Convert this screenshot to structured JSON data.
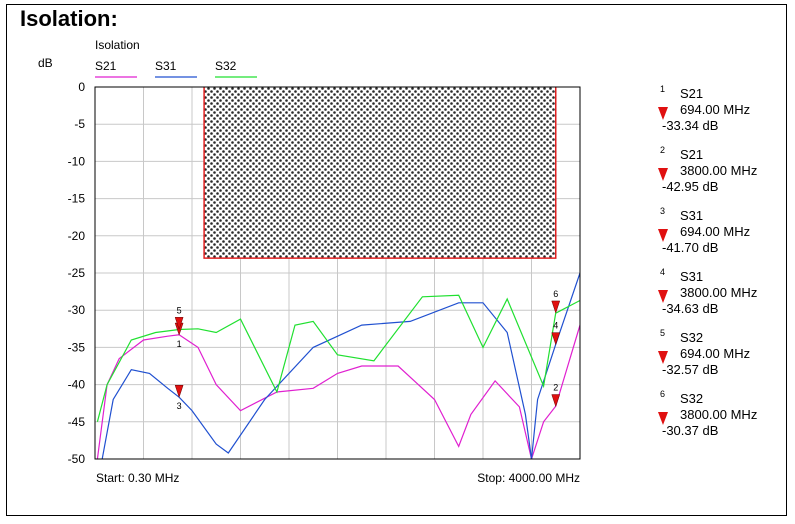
{
  "page": {
    "title": "Isolation:"
  },
  "colors": {
    "S21": "#e020d0",
    "S31": "#2050d0",
    "S32": "#20e030",
    "mask": "#e02020",
    "marker": "#e01010"
  },
  "chart_data": {
    "type": "line",
    "title": "",
    "legend_title": "Isolation",
    "ylabel": "dB",
    "xlabel": "",
    "x_start_label": "Start: 0.30 MHz",
    "x_stop_label": "Stop: 4000.00 MHz",
    "xlim": [
      0.3,
      4000
    ],
    "ylim": [
      -50,
      0
    ],
    "yticks": [
      0,
      -5,
      -10,
      -15,
      -20,
      -25,
      -30,
      -35,
      -40,
      -45,
      -50
    ],
    "ytick_labels": [
      "0",
      "-5",
      "-10",
      "-15",
      "-20",
      "-25",
      "-30",
      "-35",
      "-40",
      "-45",
      "-50"
    ],
    "grid": true,
    "legend_placement": "top-left",
    "series": [
      {
        "name": "S21",
        "x": [
          20,
          100,
          200,
          400,
          600,
          694,
          850,
          1000,
          1200,
          1500,
          1800,
          2000,
          2200,
          2500,
          2800,
          3000,
          3100,
          3300,
          3500,
          3600,
          3700,
          3800,
          4000
        ],
        "y": [
          -50,
          -40,
          -36.5,
          -34,
          -33.5,
          -33.3,
          -35,
          -40,
          -43.5,
          -41,
          -40.5,
          -38.5,
          -37.5,
          -37.5,
          -42,
          -48.3,
          -44,
          -39.5,
          -43,
          -50,
          -45,
          -42.9,
          -32
        ]
      },
      {
        "name": "S31",
        "x": [
          60,
          150,
          300,
          450,
          600,
          694,
          800,
          1000,
          1100,
          1400,
          1800,
          2200,
          2600,
          3000,
          3200,
          3400,
          3550,
          3600,
          3650,
          3800,
          4000
        ],
        "y": [
          -50,
          -42,
          -38,
          -38.5,
          -40.5,
          -41.7,
          -43.5,
          -48,
          -49.2,
          -42,
          -35,
          -32,
          -31.5,
          -29,
          -29,
          -33,
          -44,
          -50,
          -42,
          -34.6,
          -25
        ]
      },
      {
        "name": "S32",
        "x": [
          20,
          100,
          300,
          500,
          694,
          850,
          1000,
          1200,
          1500,
          1650,
          1800,
          2000,
          2300,
          2700,
          3000,
          3200,
          3400,
          3700,
          3800,
          4000
        ],
        "y": [
          -45,
          -40,
          -34,
          -33,
          -32.6,
          -32.5,
          -33,
          -31.2,
          -41,
          -32,
          -31.5,
          -36,
          -36.8,
          -28.2,
          -28,
          -35,
          -28.5,
          -40.2,
          -30.4,
          -28.7
        ]
      }
    ],
    "mask": {
      "x_start": 900,
      "x_end": 3800,
      "y_top": 0,
      "y_bottom": -23
    },
    "markers": [
      {
        "id": "1",
        "series": "S21",
        "freq": "694.00 MHz",
        "value": "-33.34 dB",
        "x": 694,
        "y": -33.34
      },
      {
        "id": "2",
        "series": "S21",
        "freq": "3800.00 MHz",
        "value": "-42.95 dB",
        "x": 3800,
        "y": -42.95
      },
      {
        "id": "3",
        "series": "S31",
        "freq": "694.00 MHz",
        "value": "-41.70 dB",
        "x": 694,
        "y": -41.7
      },
      {
        "id": "4",
        "series": "S31",
        "freq": "3800.00 MHz",
        "value": "-34.63 dB",
        "x": 3800,
        "y": -34.63
      },
      {
        "id": "5",
        "series": "S32",
        "freq": "694.00 MHz",
        "value": "-32.57 dB",
        "x": 694,
        "y": -32.57
      },
      {
        "id": "6",
        "series": "S32",
        "freq": "3800.00 MHz",
        "value": "-30.37 dB",
        "x": 3800,
        "y": -30.37
      }
    ]
  }
}
